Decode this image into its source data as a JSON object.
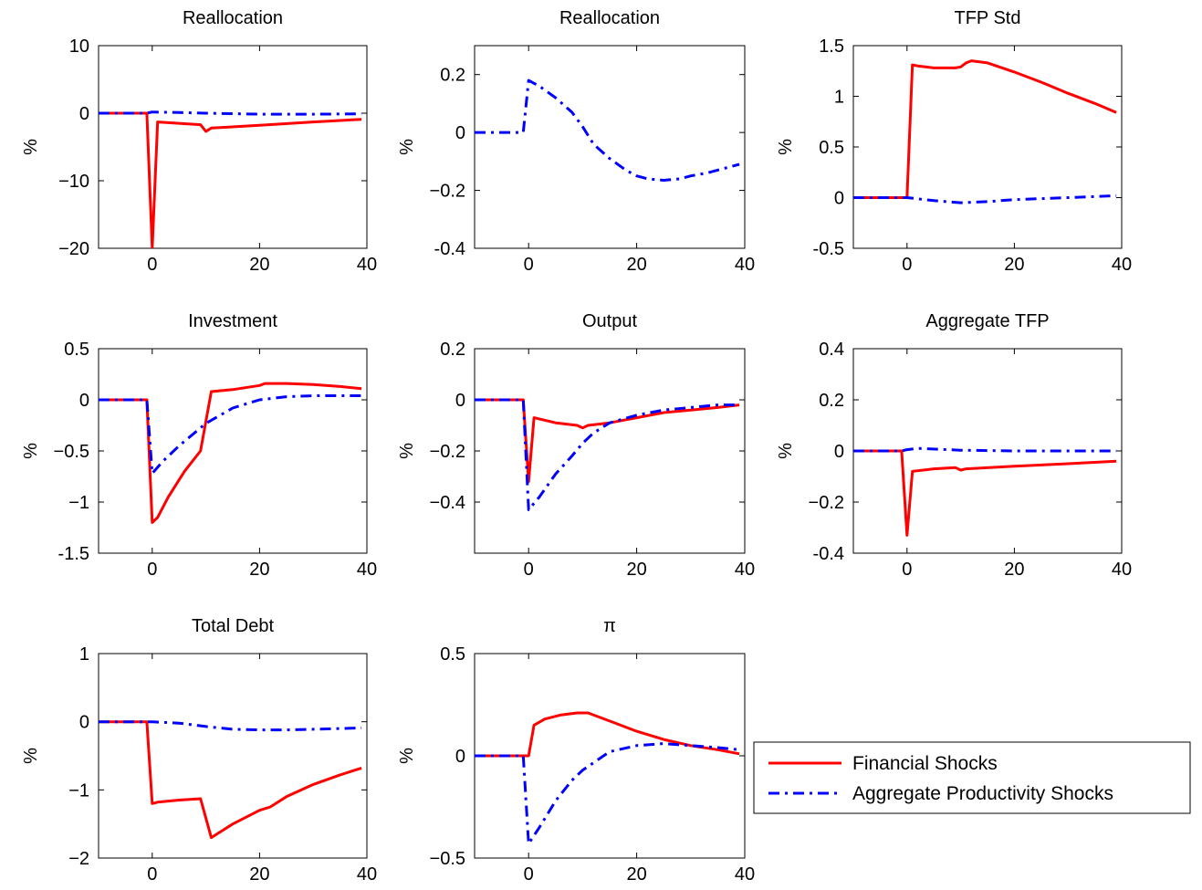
{
  "legend": {
    "placement": "bottom-right",
    "entries": [
      {
        "label": "Financial Shocks",
        "color": "#ff0000",
        "style": "solid"
      },
      {
        "label": "Aggregate Productivity Shocks",
        "color": "#0000ff",
        "style": "dashdot"
      }
    ]
  },
  "chart_data": [
    {
      "type": "line",
      "title": "Reallocation",
      "ylabel": "%",
      "xlabel": "",
      "xlim": [
        -10,
        40
      ],
      "ylim": [
        -20,
        10
      ],
      "xticks": [
        0,
        20,
        40
      ],
      "yticks": [
        -20,
        -10,
        0,
        10
      ],
      "xtick_labels": [
        "0",
        "20",
        "40"
      ],
      "ytick_labels": [
        "−20",
        "−10",
        "0",
        "10"
      ],
      "series": [
        {
          "name": "Financial Shocks",
          "color": "#ff0000",
          "style": "solid",
          "x": [
            -10,
            -1,
            0,
            1,
            9,
            10,
            11,
            20,
            30,
            39
          ],
          "y": [
            0,
            0,
            -20,
            -1.3,
            -1.7,
            -2.7,
            -2.2,
            -1.8,
            -1.3,
            -0.9
          ]
        },
        {
          "name": "Aggregate Productivity Shocks",
          "color": "#0000ff",
          "style": "dashdot",
          "x": [
            -10,
            -1,
            0,
            5,
            10,
            20,
            30,
            39
          ],
          "y": [
            0,
            0,
            0.18,
            0.1,
            0,
            -0.15,
            -0.15,
            -0.1
          ]
        }
      ]
    },
    {
      "type": "line",
      "title": "Reallocation",
      "ylabel": "%",
      "xlabel": "",
      "xlim": [
        -10,
        40
      ],
      "ylim": [
        -0.4,
        0.3
      ],
      "xticks": [
        0,
        20,
        40
      ],
      "yticks": [
        -0.4,
        -0.2,
        0,
        0.2
      ],
      "xtick_labels": [
        "0",
        "20",
        "40"
      ],
      "ytick_labels": [
        "-0.4",
        "−0.2",
        "0",
        "0.2"
      ],
      "series": [
        {
          "name": "Aggregate Productivity Shocks",
          "color": "#0000ff",
          "style": "dashdot",
          "x": [
            -10,
            -1,
            0,
            2,
            5,
            8,
            10,
            12,
            15,
            18,
            20,
            22,
            25,
            28,
            30,
            33,
            36,
            39
          ],
          "y": [
            0,
            0,
            0.18,
            0.16,
            0.12,
            0.07,
            0.02,
            -0.04,
            -0.09,
            -0.13,
            -0.15,
            -0.16,
            -0.165,
            -0.16,
            -0.15,
            -0.14,
            -0.125,
            -0.11
          ]
        }
      ]
    },
    {
      "type": "line",
      "title": "TFP Std",
      "ylabel": "%",
      "xlabel": "",
      "xlim": [
        -10,
        40
      ],
      "ylim": [
        -0.5,
        1.5
      ],
      "xticks": [
        0,
        20,
        40
      ],
      "yticks": [
        -0.5,
        0,
        0.5,
        1,
        1.5
      ],
      "xtick_labels": [
        "0",
        "20",
        "40"
      ],
      "ytick_labels": [
        "-0.5",
        "0",
        "0.5",
        "1",
        "1.5"
      ],
      "series": [
        {
          "name": "Financial Shocks",
          "color": "#ff0000",
          "style": "solid",
          "x": [
            -10,
            0,
            1,
            2,
            5,
            9,
            10,
            11,
            12,
            15,
            20,
            25,
            30,
            35,
            39
          ],
          "y": [
            0,
            0,
            1.31,
            1.3,
            1.28,
            1.28,
            1.29,
            1.33,
            1.35,
            1.33,
            1.24,
            1.14,
            1.03,
            0.93,
            0.84
          ]
        },
        {
          "name": "Aggregate Productivity Shocks",
          "color": "#0000ff",
          "style": "dashdot",
          "x": [
            -10,
            0,
            5,
            10,
            15,
            20,
            30,
            39
          ],
          "y": [
            0,
            0,
            -0.03,
            -0.05,
            -0.04,
            -0.02,
            0,
            0.02
          ]
        }
      ]
    },
    {
      "type": "line",
      "title": "Investment",
      "ylabel": "%",
      "xlabel": "",
      "xlim": [
        -10,
        40
      ],
      "ylim": [
        -1.5,
        0.5
      ],
      "xticks": [
        0,
        20,
        40
      ],
      "yticks": [
        -1.5,
        -1,
        -0.5,
        0,
        0.5
      ],
      "xtick_labels": [
        "0",
        "20",
        "40"
      ],
      "ytick_labels": [
        "-1.5",
        "−1",
        "−0.5",
        "0",
        "0.5"
      ],
      "series": [
        {
          "name": "Financial Shocks",
          "color": "#ff0000",
          "style": "solid",
          "x": [
            -10,
            -1,
            0,
            1,
            3,
            6,
            9,
            11,
            15,
            20,
            21,
            25,
            30,
            35,
            39
          ],
          "y": [
            0,
            0,
            -1.2,
            -1.15,
            -0.95,
            -0.7,
            -0.5,
            0.08,
            0.1,
            0.14,
            0.16,
            0.16,
            0.15,
            0.13,
            0.11
          ]
        },
        {
          "name": "Aggregate Productivity Shocks",
          "color": "#0000ff",
          "style": "dashdot",
          "x": [
            -10,
            -1,
            0,
            2,
            5,
            10,
            15,
            20,
            25,
            30,
            35,
            39
          ],
          "y": [
            0,
            0,
            -0.72,
            -0.6,
            -0.45,
            -0.23,
            -0.08,
            0,
            0.03,
            0.04,
            0.04,
            0.04
          ]
        }
      ]
    },
    {
      "type": "line",
      "title": "Output",
      "ylabel": "%",
      "xlabel": "",
      "xlim": [
        -10,
        40
      ],
      "ylim": [
        -0.6,
        0.2
      ],
      "xticks": [
        0,
        20,
        40
      ],
      "yticks": [
        -0.4,
        -0.2,
        0,
        0.2
      ],
      "xtick_labels": [
        "0",
        "20",
        "40"
      ],
      "ytick_labels": [
        "−0.4",
        "−0.2",
        "0",
        "0.2"
      ],
      "series": [
        {
          "name": "Financial Shocks",
          "color": "#ff0000",
          "style": "solid",
          "x": [
            -10,
            -1,
            0,
            1,
            5,
            9,
            10,
            11,
            15,
            20,
            25,
            30,
            35,
            39
          ],
          "y": [
            0,
            0,
            -0.32,
            -0.07,
            -0.09,
            -0.1,
            -0.11,
            -0.1,
            -0.09,
            -0.07,
            -0.05,
            -0.04,
            -0.03,
            -0.02
          ]
        },
        {
          "name": "Aggregate Productivity Shocks",
          "color": "#0000ff",
          "style": "dashdot",
          "x": [
            -10,
            -1,
            0,
            2,
            5,
            8,
            10,
            12,
            15,
            20,
            25,
            30,
            35,
            39
          ],
          "y": [
            0,
            0,
            -0.43,
            -0.38,
            -0.29,
            -0.22,
            -0.17,
            -0.13,
            -0.09,
            -0.06,
            -0.04,
            -0.03,
            -0.02,
            -0.02
          ]
        }
      ]
    },
    {
      "type": "line",
      "title": "Aggregate TFP",
      "ylabel": "%",
      "xlabel": "",
      "xlim": [
        -10,
        40
      ],
      "ylim": [
        -0.4,
        0.4
      ],
      "xticks": [
        0,
        20,
        40
      ],
      "yticks": [
        -0.4,
        -0.2,
        0,
        0.2,
        0.4
      ],
      "xtick_labels": [
        "0",
        "20",
        "40"
      ],
      "ytick_labels": [
        "-0.4",
        "−0.2",
        "0",
        "0.2",
        "0.4"
      ],
      "series": [
        {
          "name": "Financial Shocks",
          "color": "#ff0000",
          "style": "solid",
          "x": [
            -10,
            -1,
            0,
            1,
            5,
            9,
            10,
            11,
            20,
            30,
            39
          ],
          "y": [
            0,
            0,
            -0.33,
            -0.08,
            -0.07,
            -0.065,
            -0.075,
            -0.07,
            -0.06,
            -0.05,
            -0.04
          ]
        },
        {
          "name": "Aggregate Productivity Shocks",
          "color": "#0000ff",
          "style": "dashdot",
          "x": [
            -10,
            -1,
            0,
            2,
            10,
            20,
            30,
            39
          ],
          "y": [
            0,
            0,
            0.005,
            0.01,
            0.003,
            0,
            0,
            0
          ]
        }
      ]
    },
    {
      "type": "line",
      "title": "Total Debt",
      "ylabel": "%",
      "xlabel": "",
      "xlim": [
        -10,
        40
      ],
      "ylim": [
        -2,
        1
      ],
      "xticks": [
        0,
        20,
        40
      ],
      "yticks": [
        -2,
        -1,
        0,
        1
      ],
      "xtick_labels": [
        "0",
        "20",
        "40"
      ],
      "ytick_labels": [
        "−2",
        "−1",
        "0",
        "1"
      ],
      "series": [
        {
          "name": "Financial Shocks",
          "color": "#ff0000",
          "style": "solid",
          "x": [
            -10,
            -1,
            0,
            1,
            5,
            9,
            11,
            15,
            20,
            22,
            25,
            30,
            35,
            39
          ],
          "y": [
            0,
            0,
            -1.2,
            -1.18,
            -1.15,
            -1.13,
            -1.7,
            -1.5,
            -1.3,
            -1.25,
            -1.1,
            -0.92,
            -0.78,
            -0.68
          ]
        },
        {
          "name": "Aggregate Productivity Shocks",
          "color": "#0000ff",
          "style": "dashdot",
          "x": [
            -10,
            -1,
            0,
            5,
            10,
            15,
            20,
            25,
            30,
            35,
            39
          ],
          "y": [
            0,
            0,
            0,
            -0.02,
            -0.07,
            -0.11,
            -0.12,
            -0.12,
            -0.11,
            -0.1,
            -0.09
          ]
        }
      ]
    },
    {
      "type": "line",
      "title": "π",
      "ylabel": "%",
      "xlabel": "",
      "xlim": [
        -10,
        40
      ],
      "ylim": [
        -0.5,
        0.5
      ],
      "xticks": [
        0,
        20,
        40
      ],
      "yticks": [
        -0.5,
        0,
        0.5
      ],
      "xtick_labels": [
        "0",
        "20",
        "40"
      ],
      "ytick_labels": [
        "−0.5",
        "0",
        "0.5"
      ],
      "series": [
        {
          "name": "Financial Shocks",
          "color": "#ff0000",
          "style": "solid",
          "x": [
            -10,
            0,
            1,
            3,
            6,
            9,
            11,
            15,
            20,
            25,
            30,
            35,
            39
          ],
          "y": [
            0,
            0,
            0.15,
            0.18,
            0.2,
            0.21,
            0.21,
            0.17,
            0.12,
            0.08,
            0.05,
            0.03,
            0.01
          ]
        },
        {
          "name": "Aggregate Productivity Shocks",
          "color": "#0000ff",
          "style": "dashdot",
          "x": [
            -10,
            -1,
            0,
            2,
            5,
            8,
            10,
            15,
            20,
            25,
            30,
            35,
            39
          ],
          "y": [
            0,
            0,
            -0.43,
            -0.35,
            -0.22,
            -0.12,
            -0.07,
            0.02,
            0.05,
            0.06,
            0.05,
            0.04,
            0.03
          ]
        }
      ]
    }
  ]
}
